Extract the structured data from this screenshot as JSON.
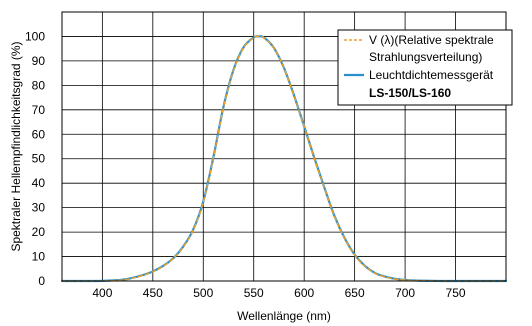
{
  "chart_data": {
    "type": "line",
    "xlabel": "Wellenlänge (nm)",
    "ylabel": "Spektraler Hellempfindlichkeitsgrad (%)",
    "xlim": [
      360,
      800
    ],
    "ylim": [
      0,
      110
    ],
    "x_ticks": [
      400,
      450,
      500,
      550,
      600,
      650,
      700,
      750
    ],
    "y_ticks": [
      0,
      10,
      20,
      30,
      40,
      50,
      60,
      70,
      80,
      90,
      100
    ],
    "grid": true,
    "legend_position": "top-right",
    "series": [
      {
        "name_lines": [
          "V (λ)(Relative spektrale",
          "Strahlungsverteilung)"
        ],
        "style": "dashed",
        "color": "#f0a020",
        "x": [
          360,
          380,
          400,
          420,
          430,
          440,
          450,
          460,
          470,
          480,
          490,
          500,
          510,
          520,
          530,
          540,
          550,
          555,
          560,
          570,
          580,
          590,
          600,
          610,
          620,
          630,
          640,
          650,
          660,
          670,
          680,
          690,
          700,
          710,
          720,
          740,
          760,
          780,
          800
        ],
        "values": [
          0.0,
          0.0,
          0.04,
          0.4,
          1.2,
          2.3,
          3.8,
          6.0,
          9.1,
          13.9,
          20.8,
          32.3,
          50.3,
          71.0,
          86.2,
          95.4,
          99.5,
          100.0,
          99.5,
          95.2,
          87.0,
          75.7,
          63.1,
          50.3,
          38.1,
          26.5,
          17.5,
          10.7,
          6.1,
          3.2,
          1.7,
          0.8,
          0.4,
          0.2,
          0.1,
          0.0,
          0.0,
          0.0,
          0.0
        ]
      },
      {
        "name_lines": [
          "Leuchtdichtemessgerät",
          "LS-150/LS-160"
        ],
        "bold_line_index": 1,
        "style": "solid",
        "color": "#2b8fce",
        "x": [
          360,
          380,
          400,
          420,
          430,
          440,
          450,
          460,
          470,
          480,
          490,
          500,
          510,
          520,
          530,
          540,
          550,
          555,
          560,
          570,
          580,
          590,
          600,
          610,
          620,
          630,
          640,
          650,
          660,
          670,
          680,
          690,
          700,
          710,
          720,
          740,
          760,
          780,
          800
        ],
        "values": [
          0.0,
          0.0,
          0.05,
          0.5,
          1.3,
          2.4,
          3.9,
          6.1,
          9.2,
          14.0,
          21.0,
          32.5,
          50.5,
          71.2,
          86.4,
          95.6,
          99.6,
          100.0,
          99.6,
          95.3,
          87.1,
          75.8,
          63.2,
          50.4,
          38.2,
          26.6,
          17.6,
          10.8,
          6.2,
          3.3,
          1.8,
          0.9,
          0.4,
          0.2,
          0.1,
          0.0,
          0.0,
          0.0,
          0.0
        ]
      }
    ]
  }
}
